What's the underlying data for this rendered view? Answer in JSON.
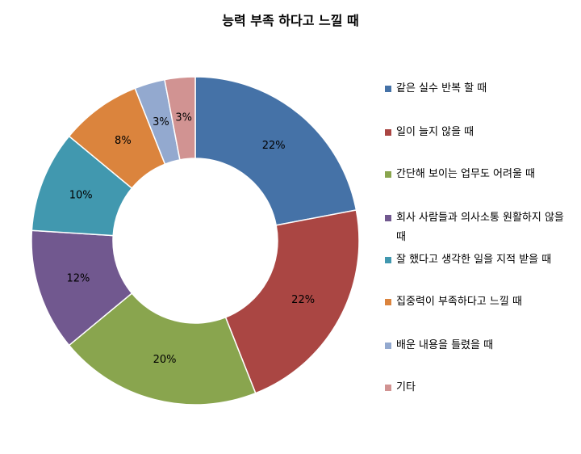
{
  "chart_data": {
    "type": "pie",
    "subtype": "donut",
    "title": "능력 부족 하다고 느낄 때",
    "categories": [
      "같은 실수 반복 할 때",
      "일이 늘지 않을 때",
      "간단해 보이는 업무도 어려울 때",
      "회사 사람들과 의사소통 원활하지 않을 때",
      "잘 했다고 생각한 일을 지적 받을 때",
      "집중력이 부족하다고 느낄 때",
      "배운 내용을 틀렸을 때",
      "기타"
    ],
    "values": [
      22,
      22,
      20,
      12,
      10,
      8,
      3,
      3
    ],
    "value_labels": [
      "22%",
      "22%",
      "20%",
      "12%",
      "10%",
      "8%",
      "3%",
      "3%"
    ],
    "colors": [
      "#4572A7",
      "#AA4643",
      "#89A54E",
      "#71588F",
      "#4198AF",
      "#DB843D",
      "#93A9CF",
      "#D19392"
    ],
    "legend_position": "right"
  }
}
